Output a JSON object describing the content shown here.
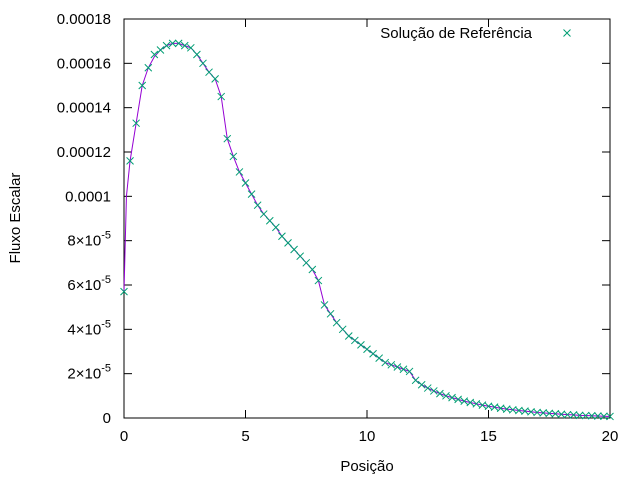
{
  "chart_data": {
    "type": "line",
    "xlabel": "Posição",
    "ylabel": "Fluxo Escalar",
    "xlim": [
      0,
      20
    ],
    "ylim": [
      0,
      0.00018
    ],
    "grid": false,
    "legend_position": "top-right",
    "x_ticks": [
      {
        "value": 0,
        "label": "0"
      },
      {
        "value": 5,
        "label": "5"
      },
      {
        "value": 10,
        "label": "10"
      },
      {
        "value": 15,
        "label": "15"
      },
      {
        "value": 20,
        "label": "20"
      }
    ],
    "y_ticks": [
      {
        "value": 0,
        "label": "0"
      },
      {
        "value": 2e-05,
        "label": "2×10",
        "exp": "-5"
      },
      {
        "value": 4e-05,
        "label": "4×10",
        "exp": "-5"
      },
      {
        "value": 6e-05,
        "label": "6×10",
        "exp": "-5"
      },
      {
        "value": 8e-05,
        "label": "8×10",
        "exp": "-5"
      },
      {
        "value": 0.0001,
        "label": "0.0001"
      },
      {
        "value": 0.00012,
        "label": "0.00012"
      },
      {
        "value": 0.00014,
        "label": "0.00014"
      },
      {
        "value": 0.00016,
        "label": "0.00016"
      },
      {
        "value": 0.00018,
        "label": "0.00018"
      }
    ],
    "series": [
      {
        "name": "",
        "style": "line",
        "color": "#9400d3",
        "x": [
          0,
          0.1,
          0.25,
          0.5,
          0.75,
          1.0,
          1.25,
          1.5,
          1.75,
          2.0,
          2.25,
          2.5,
          2.75,
          3.0,
          3.25,
          3.5,
          3.75,
          4.0,
          4.25,
          4.5,
          4.75,
          5.0,
          5.25,
          5.5,
          5.75,
          6.0,
          6.25,
          6.5,
          6.75,
          7.0,
          7.25,
          7.5,
          7.75,
          8.0,
          8.25,
          8.5,
          8.75,
          9.0,
          9.25,
          9.5,
          9.75,
          10.0,
          10.25,
          10.5,
          10.75,
          11.0,
          11.25,
          11.5,
          11.75,
          12.0,
          12.25,
          12.5,
          12.75,
          13.0,
          13.25,
          13.5,
          13.75,
          14.0,
          14.25,
          14.5,
          14.75,
          15.0,
          15.25,
          15.5,
          15.75,
          16.0,
          16.25,
          16.5,
          16.75,
          17.0,
          17.25,
          17.5,
          17.75,
          18.0,
          18.25,
          18.5,
          18.75,
          19.0,
          19.25,
          19.5,
          19.75,
          20.0
        ],
        "y": [
          5.7e-05,
          0.0001,
          0.000116,
          0.000133,
          0.00015,
          0.000158,
          0.000163,
          0.000166,
          0.000168,
          0.000169,
          0.000169,
          0.000168,
          0.000167,
          0.000164,
          0.00016,
          0.000156,
          0.000153,
          0.000145,
          0.000126,
          0.000118,
          0.000111,
          0.000106,
          0.000101,
          9.6e-05,
          9.2e-05,
          8.9e-05,
          8.6e-05,
          8.2e-05,
          7.9e-05,
          7.6e-05,
          7.3e-05,
          7e-05,
          6.7e-05,
          6.2e-05,
          5.1e-05,
          4.7e-05,
          4.3e-05,
          4e-05,
          3.7e-05,
          3.5e-05,
          3.3e-05,
          3.1e-05,
          2.9e-05,
          2.7e-05,
          2.5e-05,
          2.4e-05,
          2.3e-05,
          2.2e-05,
          2.1e-05,
          1.7e-05,
          1.5e-05,
          1.35e-05,
          1.22e-05,
          1.1e-05,
          1e-05,
          9.2e-06,
          8.4e-06,
          7.6e-06,
          7e-06,
          6.4e-06,
          5.8e-06,
          5.3e-06,
          4.9e-06,
          4.4e-06,
          4e-06,
          3.7e-06,
          3.4e-06,
          3.1e-06,
          2.8e-06,
          2.5e-06,
          2.3e-06,
          2.1e-06,
          1.9e-06,
          1.7e-06,
          1.5e-06,
          1.4e-06,
          1.2e-06,
          1.1e-06,
          1e-06,
          9e-07,
          8e-07,
          7e-07
        ]
      },
      {
        "name": "Solução de Referência",
        "style": "points",
        "marker": "x",
        "color": "#009e73",
        "x": [
          0,
          0.25,
          0.5,
          0.75,
          1.0,
          1.25,
          1.5,
          1.75,
          2.0,
          2.25,
          2.5,
          2.75,
          3.0,
          3.25,
          3.5,
          3.75,
          4.0,
          4.25,
          4.5,
          4.75,
          5.0,
          5.25,
          5.5,
          5.75,
          6.0,
          6.25,
          6.5,
          6.75,
          7.0,
          7.25,
          7.5,
          7.75,
          8.0,
          8.25,
          8.5,
          8.75,
          9.0,
          9.25,
          9.5,
          9.75,
          10.0,
          10.25,
          10.5,
          10.75,
          11.0,
          11.25,
          11.5,
          11.75,
          12.0,
          12.25,
          12.5,
          12.75,
          13.0,
          13.25,
          13.5,
          13.75,
          14.0,
          14.25,
          14.5,
          14.75,
          15.0,
          15.25,
          15.5,
          15.75,
          16.0,
          16.25,
          16.5,
          16.75,
          17.0,
          17.25,
          17.5,
          17.75,
          18.0,
          18.25,
          18.5,
          18.75,
          19.0,
          19.25,
          19.5,
          19.75,
          20.0
        ],
        "y": [
          5.7e-05,
          0.000116,
          0.000133,
          0.00015,
          0.000158,
          0.000164,
          0.000166,
          0.000168,
          0.000169,
          0.000169,
          0.000168,
          0.000167,
          0.000164,
          0.00016,
          0.000156,
          0.000153,
          0.000145,
          0.000126,
          0.000118,
          0.000111,
          0.000106,
          0.000101,
          9.6e-05,
          9.2e-05,
          8.9e-05,
          8.6e-05,
          8.2e-05,
          7.9e-05,
          7.6e-05,
          7.3e-05,
          7e-05,
          6.7e-05,
          6.2e-05,
          5.1e-05,
          4.7e-05,
          4.3e-05,
          4e-05,
          3.7e-05,
          3.5e-05,
          3.3e-05,
          3.1e-05,
          2.9e-05,
          2.7e-05,
          2.5e-05,
          2.4e-05,
          2.3e-05,
          2.2e-05,
          2.1e-05,
          1.7e-05,
          1.5e-05,
          1.35e-05,
          1.22e-05,
          1.1e-05,
          1e-05,
          9.2e-06,
          8.4e-06,
          7.6e-06,
          7e-06,
          6.4e-06,
          5.8e-06,
          5.3e-06,
          4.9e-06,
          4.4e-06,
          4e-06,
          3.7e-06,
          3.4e-06,
          3.1e-06,
          2.8e-06,
          2.5e-06,
          2.3e-06,
          2.1e-06,
          1.9e-06,
          1.7e-06,
          1.5e-06,
          1.4e-06,
          1.2e-06,
          1.1e-06,
          1e-06,
          9e-07,
          8e-07,
          7e-07
        ]
      }
    ]
  }
}
